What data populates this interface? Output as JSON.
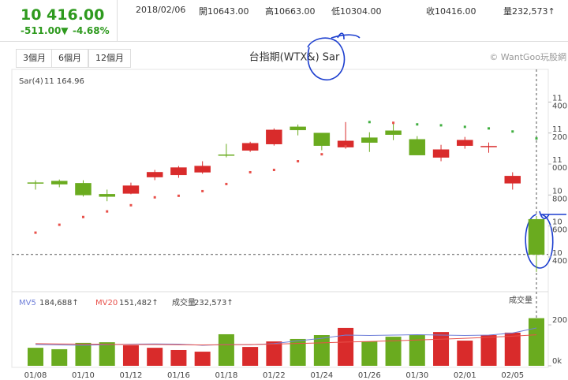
{
  "header": {
    "price": "10 416.00",
    "change": "-511.00▼",
    "percent": "-4.68%",
    "date": "2018/02/06",
    "open": "開10643.00",
    "high": "高10663.00",
    "low": "低10304.00",
    "close": "收10416.00",
    "volume": "量232,573↑"
  },
  "buttons": [
    "3個月",
    "6個月",
    "12個月"
  ],
  "chart_data": {
    "type": "candlestick",
    "title": "台指期(WTX&) Sar",
    "credit": "© WantGoo玩股網",
    "categories": [
      "01/08",
      null,
      "01/10",
      null,
      "01/12",
      null,
      "01/16",
      null,
      "01/18",
      null,
      "01/22",
      null,
      "01/24",
      null,
      "01/26",
      null,
      "01/30",
      null,
      "02/01",
      null,
      "02/05",
      null
    ],
    "up_color": "#d92b2b",
    "down_color": "#6aab1f",
    "candles": {
      "open": [
        10880,
        10890,
        10876,
        10805,
        10810,
        10916,
        10930,
        10947,
        11060,
        11088,
        11129,
        11240,
        11200,
        11109,
        11170,
        11215,
        11159,
        11043,
        11119,
        11110,
        10876,
        10643
      ],
      "high": [
        10895,
        10900,
        10895,
        10835,
        10880,
        10962,
        10987,
        11018,
        11130,
        11144,
        11230,
        11255,
        11200,
        11271,
        11205,
        11266,
        11180,
        11124,
        11175,
        11139,
        10947,
        10663
      ],
      "low": [
        10835,
        10850,
        10790,
        10760,
        10805,
        10896,
        10911,
        10937,
        11043,
        11078,
        11119,
        11185,
        11089,
        11099,
        11078,
        11154,
        11058,
        11018,
        11099,
        11073,
        10835,
        10304
      ],
      "close": [
        10876,
        10870,
        10800,
        10790,
        10860,
        10947,
        10977,
        10987,
        11055,
        11134,
        11220,
        11220,
        11119,
        11149,
        11139,
        11190,
        11058,
        11093,
        11154,
        11115,
        10922,
        10416
      ]
    },
    "sar": {
      "name": "Sar(4)",
      "color": "#e8504a",
      "values": [
        10557,
        10608,
        10658,
        10694,
        10734,
        10785,
        10795,
        10825,
        10871,
        10947,
        10962,
        11018,
        11063,
        11114,
        11271,
        11266,
        11256,
        11250,
        11240,
        11230,
        11210,
        11164.96
      ],
      "value_labels": [
        null,
        null,
        null,
        null,
        null,
        null,
        null,
        null,
        null,
        null,
        null,
        null,
        null,
        null,
        null,
        null,
        null,
        null,
        null,
        null,
        null,
        "11 164.96"
      ]
    },
    "up_sar_color": "#3fae3f",
    "ylim": [
      10186,
      11611
    ],
    "yticks": [
      {
        "value": 10400,
        "label": "10 400"
      },
      {
        "value": 10600,
        "label": "10 600"
      },
      {
        "value": 10800,
        "label": "10 800"
      },
      {
        "value": 11000,
        "label": "11 000"
      },
      {
        "value": 11200,
        "label": "11 200"
      },
      {
        "value": 11400,
        "label": "11 400"
      }
    ],
    "volume": {
      "name": "成交量",
      "axis_label": "成交量",
      "values": [
        88000,
        81000,
        112000,
        115000,
        100000,
        88000,
        77000,
        69000,
        154000,
        92000,
        119000,
        131000,
        150000,
        185000,
        119000,
        142000,
        150000,
        165000,
        123000,
        150000,
        162000,
        232573
      ],
      "value_labels": [
        null,
        null,
        null,
        null,
        null,
        null,
        null,
        null,
        null,
        null,
        null,
        null,
        null,
        null,
        null,
        null,
        null,
        null,
        null,
        null,
        null,
        "232,573↑"
      ],
      "ylim": [
        0,
        354000
      ],
      "yticks": [
        {
          "value": 0,
          "label": "0k"
        },
        {
          "value": 200000,
          "label": "200k"
        }
      ]
    },
    "ma": [
      {
        "name": "MV5",
        "color": "#6f7fd9",
        "values": [
          104000,
          102000,
          100000,
          103000,
          106000,
          107000,
          106000,
          100000,
          104000,
          103000,
          108000,
          122000,
          134000,
          150000,
          148000,
          150000,
          152000,
          150000,
          148000,
          150000,
          160000,
          184688
        ],
        "value_labels": [
          null,
          null,
          null,
          null,
          null,
          null,
          null,
          null,
          null,
          null,
          null,
          null,
          null,
          null,
          null,
          null,
          null,
          null,
          null,
          null,
          null,
          "184,688↑"
        ]
      },
      {
        "name": "MV20",
        "color": "#e8504a",
        "values": [
          108000,
          107000,
          106000,
          105000,
          104000,
          104000,
          103000,
          102000,
          103000,
          104000,
          106000,
          109000,
          112000,
          116000,
          119000,
          122000,
          126000,
          130000,
          134000,
          139000,
          145000,
          151482
        ],
        "value_labels": [
          null,
          null,
          null,
          null,
          null,
          null,
          null,
          null,
          null,
          null,
          null,
          null,
          null,
          null,
          null,
          null,
          null,
          null,
          null,
          null,
          null,
          "151,482↑"
        ]
      }
    ]
  }
}
